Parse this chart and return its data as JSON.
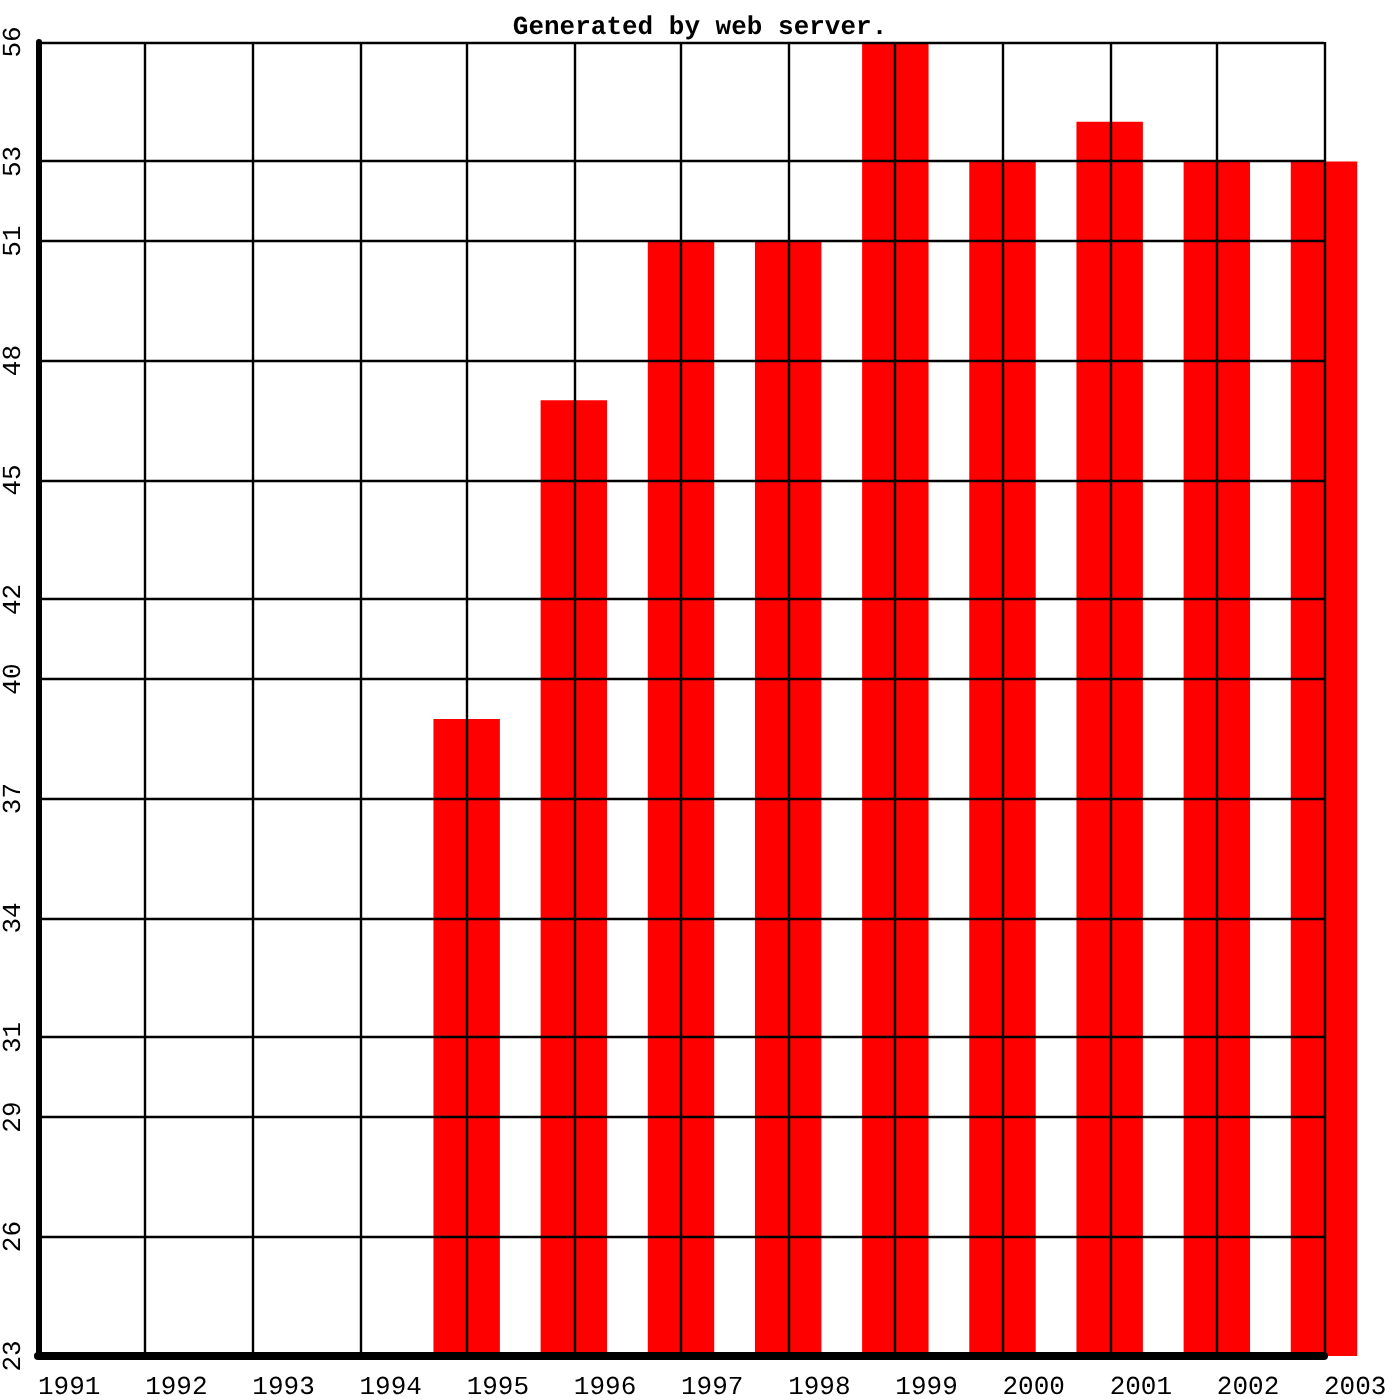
{
  "chart_data": {
    "type": "bar",
    "title": "Generated by web server.",
    "categories": [
      "1991",
      "1992",
      "1993",
      "1994",
      "1995",
      "1996",
      "1997",
      "1998",
      "1999",
      "2000",
      "2001",
      "2002",
      "2003"
    ],
    "values": [
      null,
      null,
      null,
      null,
      39,
      47,
      51,
      51,
      56,
      53,
      54,
      53,
      53
    ],
    "color": "#ff0000",
    "ylim": [
      23,
      56
    ],
    "yticks": [
      23,
      26,
      29,
      31,
      34,
      37,
      40,
      42,
      45,
      48,
      51,
      53,
      56
    ],
    "grid": true
  }
}
